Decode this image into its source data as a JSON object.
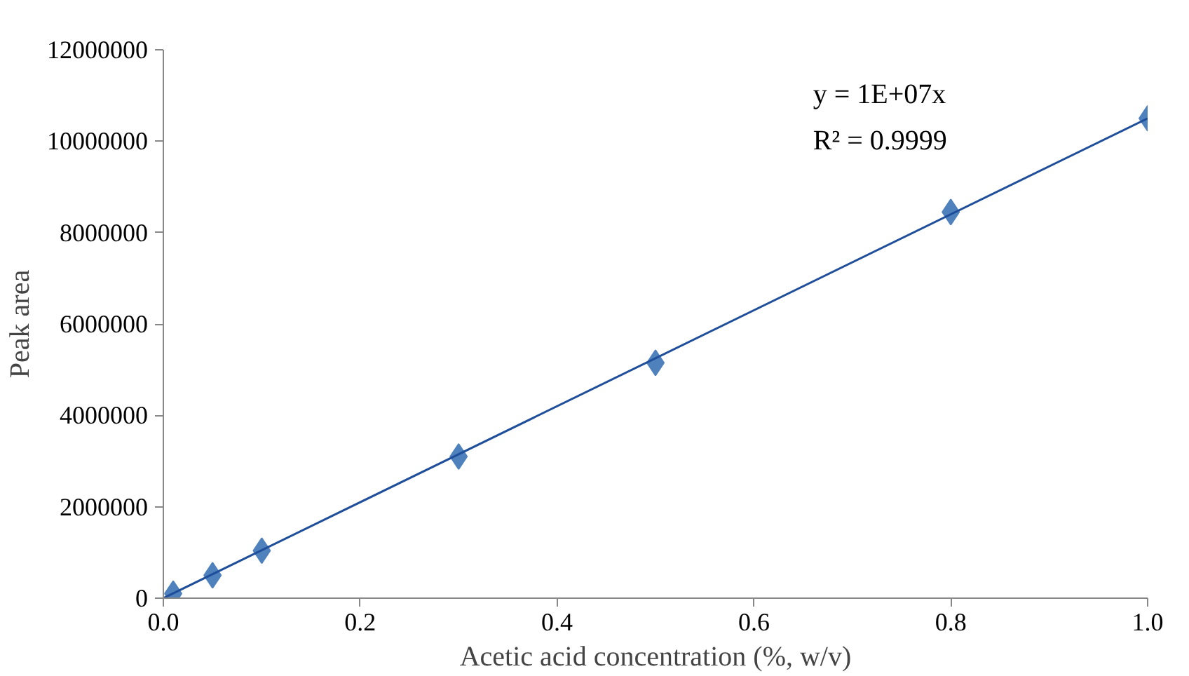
{
  "chart_data": {
    "type": "scatter",
    "xlabel": "Acetic acid concentration (%, w/v)",
    "ylabel": "Peak area",
    "x": [
      0.01,
      0.05,
      0.1,
      0.3,
      0.5,
      0.8,
      1.0
    ],
    "series": [
      {
        "color": "#4f81bd",
        "values": [
          100000,
          500000,
          1040000,
          3100000,
          5150000,
          8450000,
          10500000
        ],
        "marker": "diamond"
      },
      {
        "type": "line",
        "color": "#1f4e9a",
        "x": [
          0,
          1.0
        ],
        "values": [
          0,
          10500000
        ],
        "line_style": "solid"
      }
    ],
    "annotations": [
      "y = 1E+07x",
      "R² = 0.9999"
    ],
    "xlim": [
      0,
      1.0
    ],
    "xticks": [
      {
        "value": 0,
        "label": "0.0"
      },
      {
        "value": 0.2,
        "label": "0.2"
      },
      {
        "value": 0.4,
        "label": "0.4"
      },
      {
        "value": 0.6,
        "label": "0.6"
      },
      {
        "value": 0.8,
        "label": "0.8"
      },
      {
        "value": 1.0,
        "label": "1.0"
      }
    ],
    "ylim": [
      0,
      12000000
    ],
    "yticks": [
      0,
      2000000,
      4000000,
      6000000,
      8000000,
      10000000,
      12000000
    ],
    "grid": false
  }
}
